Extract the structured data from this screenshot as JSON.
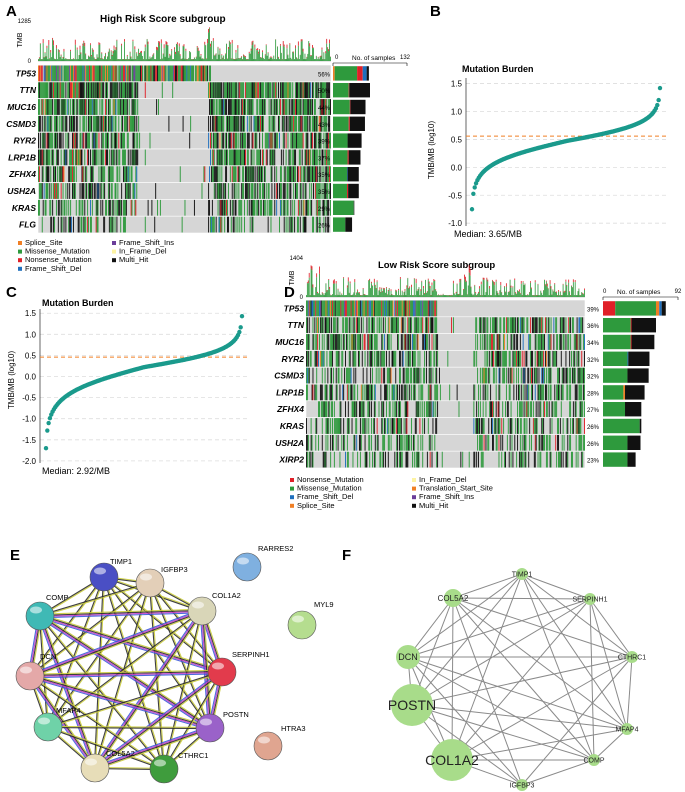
{
  "panels": {
    "A": {
      "letter": "A",
      "title": "High Risk Score subgroup",
      "tmb_label": "TMB",
      "tmb_max": "1285",
      "tmb_zero": "0",
      "samples_label": "No. of samples",
      "samples_min": "0",
      "samples_max": "132",
      "max_samples": 132,
      "genes": [
        {
          "name": "TP53",
          "pct": "56%",
          "bars": [
            {
              "c": "#f07f25",
              "v": 3
            },
            {
              "c": "#2e9a3d",
              "v": 40
            },
            {
              "c": "#e02028",
              "v": 10
            },
            {
              "c": "#1f6fbd",
              "v": 7
            },
            {
              "c": "#111111",
              "v": 4
            }
          ]
        },
        {
          "name": "TTN",
          "pct": "50%",
          "bars": [
            {
              "c": "#2e9a3d",
              "v": 28
            },
            {
              "c": "#e02028",
              "v": 1
            },
            {
              "c": "#111111",
              "v": 37
            }
          ]
        },
        {
          "name": "MUC16",
          "pct": "44%",
          "bars": [
            {
              "c": "#2e9a3d",
              "v": 30
            },
            {
              "c": "#e02028",
              "v": 1
            },
            {
              "c": "#111111",
              "v": 27
            }
          ]
        },
        {
          "name": "CSMD3",
          "pct": "43%",
          "bars": [
            {
              "c": "#2e9a3d",
              "v": 28
            },
            {
              "c": "#e02028",
              "v": 2
            },
            {
              "c": "#111111",
              "v": 27
            }
          ]
        },
        {
          "name": "RYR2",
          "pct": "39%",
          "bars": [
            {
              "c": "#2e9a3d",
              "v": 26
            },
            {
              "c": "#111111",
              "v": 25
            }
          ]
        },
        {
          "name": "LRP1B",
          "pct": "37%",
          "bars": [
            {
              "c": "#2e9a3d",
              "v": 26
            },
            {
              "c": "#e02028",
              "v": 2
            },
            {
              "c": "#111111",
              "v": 21
            }
          ]
        },
        {
          "name": "ZFHX4",
          "pct": "35%",
          "bars": [
            {
              "c": "#2e9a3d",
              "v": 25
            },
            {
              "c": "#1f6fbd",
              "v": 1
            },
            {
              "c": "#111111",
              "v": 20
            }
          ]
        },
        {
          "name": "USH2A",
          "pct": "35%",
          "bars": [
            {
              "c": "#2e9a3d",
              "v": 25
            },
            {
              "c": "#e02028",
              "v": 2
            },
            {
              "c": "#111111",
              "v": 19
            }
          ]
        },
        {
          "name": "KRAS",
          "pct": "29%",
          "bars": [
            {
              "c": "#2e9a3d",
              "v": 37
            },
            {
              "c": "#111111",
              "v": 1
            }
          ]
        },
        {
          "name": "FLG",
          "pct": "26%",
          "bars": [
            {
              "c": "#2e9a3d",
              "v": 22
            },
            {
              "c": "#111111",
              "v": 12
            }
          ]
        }
      ],
      "legend": [
        {
          "label": "Splice_Site",
          "color": "#f07f25"
        },
        {
          "label": "Frame_Shift_Ins",
          "color": "#6a3d9a"
        },
        {
          "label": "Missense_Mutation",
          "color": "#2e9a3d"
        },
        {
          "label": "In_Frame_Del",
          "color": "#fdf3a3"
        },
        {
          "label": "Nonsense_Mutation",
          "color": "#e02028"
        },
        {
          "label": "Multi_Hit",
          "color": "#111111"
        },
        {
          "label": "Frame_Shift_Del",
          "color": "#1f6fbd"
        }
      ]
    },
    "B": {
      "letter": "B",
      "title": "Mutation Burden",
      "ylabel": "TMB/MB (log10)",
      "median": "Median: 3.65/MB",
      "yticks": [
        "1.5",
        "1.0",
        "0.5",
        "0.0",
        "-0.5",
        "-1.0"
      ],
      "ymin": -1.05,
      "ymax": 1.6,
      "median_log": 0.56,
      "low": -0.75,
      "high": 1.42
    },
    "C": {
      "letter": "C",
      "title": "Mutation Burden",
      "ylabel": "TMB/MB (log10)",
      "median": "Median: 2.92/MB",
      "yticks": [
        "1.5",
        "1.0",
        "0.5",
        "0.0",
        "-0.5",
        "-1.0",
        "-1.5",
        "-2.0"
      ],
      "ymin": -2.05,
      "ymax": 1.6,
      "median_log": 0.46,
      "low": -1.7,
      "high": 1.43
    },
    "D": {
      "letter": "D",
      "title": "Low Risk Score subgroup",
      "tmb_label": "TMB",
      "tmb_max": "1404",
      "tmb_zero": "0",
      "samples_label": "No. of samples",
      "samples_min": "0",
      "samples_max": "92",
      "max_samples": 92,
      "genes": [
        {
          "name": "TP53",
          "pct": "39%",
          "bars": [
            {
              "c": "#e02028",
              "v": 15
            },
            {
              "c": "#2e9a3d",
              "v": 50
            },
            {
              "c": "#f07f25",
              "v": 4
            },
            {
              "c": "#1f6fbd",
              "v": 3
            },
            {
              "c": "#111111",
              "v": 5
            }
          ]
        },
        {
          "name": "TTN",
          "pct": "36%",
          "bars": [
            {
              "c": "#2e9a3d",
              "v": 34
            },
            {
              "c": "#e02028",
              "v": 1
            },
            {
              "c": "#111111",
              "v": 30
            }
          ]
        },
        {
          "name": "MUC16",
          "pct": "34%",
          "bars": [
            {
              "c": "#2e9a3d",
              "v": 34
            },
            {
              "c": "#e02028",
              "v": 1
            },
            {
              "c": "#111111",
              "v": 28
            }
          ]
        },
        {
          "name": "RYR2",
          "pct": "32%",
          "bars": [
            {
              "c": "#2e9a3d",
              "v": 30
            },
            {
              "c": "#1f6fbd",
              "v": 1
            },
            {
              "c": "#111111",
              "v": 26
            }
          ]
        },
        {
          "name": "CSMD3",
          "pct": "32%",
          "bars": [
            {
              "c": "#2e9a3d",
              "v": 30
            },
            {
              "c": "#111111",
              "v": 26
            }
          ]
        },
        {
          "name": "LRP1B",
          "pct": "28%",
          "bars": [
            {
              "c": "#2e9a3d",
              "v": 25
            },
            {
              "c": "#f07f25",
              "v": 2
            },
            {
              "c": "#111111",
              "v": 24
            }
          ]
        },
        {
          "name": "ZFHX4",
          "pct": "27%",
          "bars": [
            {
              "c": "#2e9a3d",
              "v": 27
            },
            {
              "c": "#111111",
              "v": 20
            }
          ]
        },
        {
          "name": "KRAS",
          "pct": "26%",
          "bars": [
            {
              "c": "#2e9a3d",
              "v": 45
            },
            {
              "c": "#111111",
              "v": 2
            }
          ]
        },
        {
          "name": "USH2A",
          "pct": "26%",
          "bars": [
            {
              "c": "#2e9a3d",
              "v": 30
            },
            {
              "c": "#111111",
              "v": 16
            }
          ]
        },
        {
          "name": "XIRP2",
          "pct": "23%",
          "bars": [
            {
              "c": "#2e9a3d",
              "v": 30
            },
            {
              "c": "#111111",
              "v": 10
            }
          ]
        }
      ],
      "legend": [
        {
          "label": "Nonsense_Mutation",
          "color": "#e02028"
        },
        {
          "label": "In_Frame_Del",
          "color": "#fdf3a3"
        },
        {
          "label": "Missense_Mutation",
          "color": "#2e9a3d"
        },
        {
          "label": "Translation_Start_Site",
          "color": "#f07f25"
        },
        {
          "label": "Frame_Shift_Del",
          "color": "#1f6fbd"
        },
        {
          "label": "Frame_Shift_Ins",
          "color": "#6a3d9a"
        },
        {
          "label": "Splice_Site",
          "color": "#f07f25"
        },
        {
          "label": "Multi_Hit",
          "color": "#111111"
        }
      ]
    },
    "E": {
      "letter": "E",
      "nodes": [
        {
          "id": "TIMP1",
          "label": "TIMP1",
          "color": "#4a4fc4"
        },
        {
          "id": "IGFBP3",
          "label": "IGFBP3",
          "color": "#e3cfb8"
        },
        {
          "id": "RARRES2",
          "label": "RARRES2",
          "color": "#7fb0e0"
        },
        {
          "id": "COMP",
          "label": "COMP",
          "color": "#3fb9b5"
        },
        {
          "id": "COL1A2",
          "label": "COL1A2",
          "color": "#d9d6b8"
        },
        {
          "id": "MYL9",
          "label": "MYL9",
          "color": "#b5dd8f"
        },
        {
          "id": "DCN",
          "label": "DCN",
          "color": "#e4a8a8"
        },
        {
          "id": "SERPINH1",
          "label": "SERPINH1",
          "color": "#e23b4c"
        },
        {
          "id": "MFAP4",
          "label": "MFAP4",
          "color": "#6fd2a8"
        },
        {
          "id": "POSTN",
          "label": "POSTN",
          "color": "#9a62c9"
        },
        {
          "id": "HTRA3",
          "label": "HTRA3",
          "color": "#e0a590"
        },
        {
          "id": "COL5A2",
          "label": "COL5A2",
          "color": "#e7ddb8"
        },
        {
          "id": "CTHRC1",
          "label": "CTHRC1",
          "color": "#3f9c3d"
        }
      ]
    },
    "F": {
      "letter": "F",
      "nodes": [
        {
          "id": "TIMP1",
          "label": "TIMP1",
          "size": 1
        },
        {
          "id": "COL5A2",
          "label": "COL5A2",
          "size": 2
        },
        {
          "id": "SERPINH1",
          "label": "SERPINH1",
          "size": 1
        },
        {
          "id": "DCN",
          "label": "DCN",
          "size": 3
        },
        {
          "id": "CTHRC1",
          "label": "CTHRC1",
          "size": 1
        },
        {
          "id": "POSTN",
          "label": "POSTN",
          "size": 5
        },
        {
          "id": "MFAP4",
          "label": "MFAP4",
          "size": 1
        },
        {
          "id": "COL1A2",
          "label": "COL1A2",
          "size": 5
        },
        {
          "id": "COMP",
          "label": "COMP",
          "size": 1
        },
        {
          "id": "IGFBP3",
          "label": "IGFBP3",
          "size": 1
        }
      ]
    }
  }
}
